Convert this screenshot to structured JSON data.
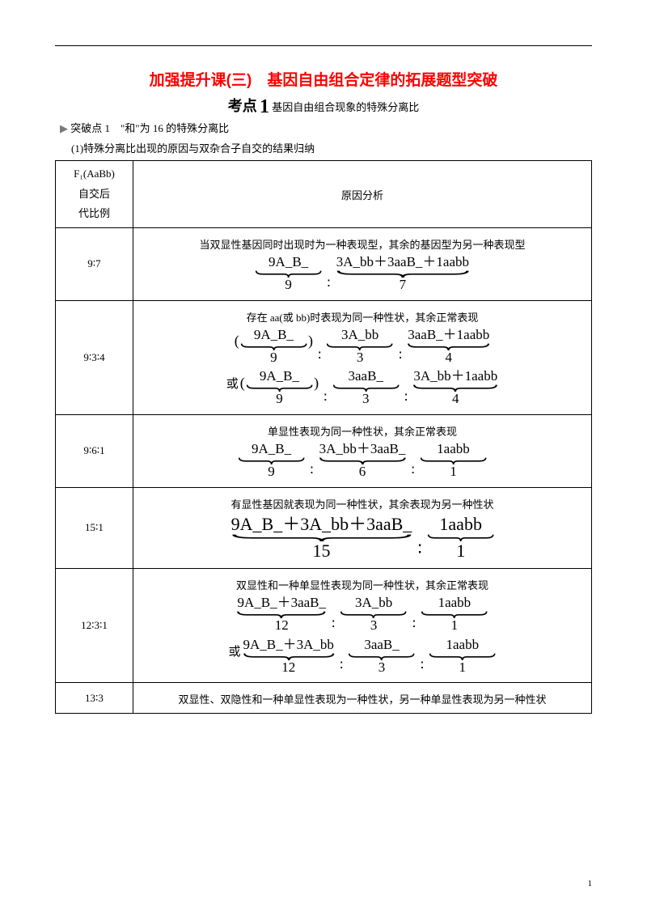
{
  "title": "加强提升课(三)　基因自由组合定律的拓展题型突破",
  "kaodian": {
    "label": "考点",
    "num": "1",
    "text": "基因自由组合现象的特殊分离比"
  },
  "breakpoint": "突破点 1　\"和\"为 16 的特殊分离比",
  "sub1": "(1)特殊分离比出现的原因与双杂合子自交的结果归纳",
  "header": {
    "left_l1": "F₁(AaBb)",
    "left_l2": "自交后",
    "left_l3": "代比例",
    "right": "原因分析"
  },
  "rows": [
    {
      "ratio": "9∶7",
      "cause": "当双显性基因同时出现时为一种表现型，其余的基因型为另一种表现型",
      "lines": [
        {
          "or": false,
          "big": false,
          "paren": false,
          "groups": [
            {
              "top": "9A_B_",
              "bot": "9"
            },
            {
              "top": "3A_bb＋3aaB_＋1aabb",
              "bot": "7"
            }
          ]
        }
      ]
    },
    {
      "ratio": "9∶3∶4",
      "cause": "存在 aa(或 bb)时表现为同一种性状，其余正常表现",
      "lines": [
        {
          "or": false,
          "big": false,
          "paren": true,
          "groups": [
            {
              "top": "9A_B_",
              "bot": "9"
            },
            {
              "top": "3A_bb",
              "bot": "3"
            },
            {
              "top": "3aaB_＋1aabb",
              "bot": "4"
            }
          ]
        },
        {
          "or": true,
          "big": false,
          "paren": true,
          "groups": [
            {
              "top": "9A_B_",
              "bot": "9"
            },
            {
              "top": "3aaB_",
              "bot": "3"
            },
            {
              "top": "3A_bb＋1aabb",
              "bot": "4"
            }
          ]
        }
      ]
    },
    {
      "ratio": "9∶6∶1",
      "cause": "单显性表现为同一种性状，其余正常表现",
      "lines": [
        {
          "or": false,
          "big": false,
          "paren": false,
          "groups": [
            {
              "top": "9A_B_",
              "bot": "9"
            },
            {
              "top": "3A_bb＋3aaB_",
              "bot": "6"
            },
            {
              "top": "1aabb",
              "bot": "1"
            }
          ]
        }
      ]
    },
    {
      "ratio": "15∶1",
      "cause": "有显性基因就表现为同一种性状，其余表现为另一种性状",
      "lines": [
        {
          "or": false,
          "big": true,
          "paren": false,
          "groups": [
            {
              "top": "9A_B_＋3A_bb＋3aaB_",
              "bot": "15"
            },
            {
              "top": "1aabb",
              "bot": "1"
            }
          ]
        }
      ]
    },
    {
      "ratio": "12∶3∶1",
      "cause": "双显性和一种单显性表现为同一种性状，其余正常表现",
      "lines": [
        {
          "or": false,
          "big": false,
          "paren": false,
          "groups": [
            {
              "top": "9A_B_＋3aaB_",
              "bot": "12"
            },
            {
              "top": "3A_bb",
              "bot": "3"
            },
            {
              "top": "1aabb",
              "bot": "1"
            }
          ]
        },
        {
          "or": true,
          "big": false,
          "paren": false,
          "groups": [
            {
              "top": "9A_B_＋3A_bb",
              "bot": "12"
            },
            {
              "top": "3aaB_",
              "bot": "3"
            },
            {
              "top": "1aabb",
              "bot": "1"
            }
          ]
        }
      ]
    },
    {
      "ratio": "13∶3",
      "cause": "双显性、双隐性和一种单显性表现为一种性状，另一种单显性表现为另一种性状",
      "lines": []
    }
  ],
  "page_num": "1"
}
